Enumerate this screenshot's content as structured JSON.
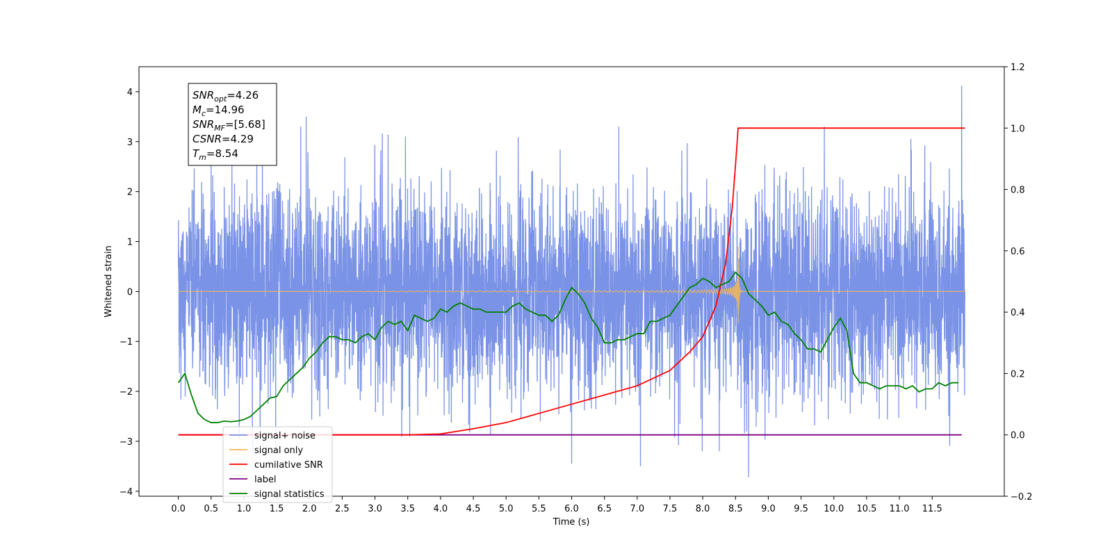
{
  "chart_data": {
    "type": "line",
    "xlabel": "Time (s)",
    "ylabel_left": "Whitened strain",
    "ylabel_right": "",
    "xlim": [
      -0.6,
      12.6
    ],
    "ylim_left": [
      -4.1,
      4.5
    ],
    "ylim_right": [
      -0.2,
      1.2
    ],
    "x_ticks": [
      "0.0",
      "0.5",
      "1.0",
      "1.5",
      "2.0",
      "2.5",
      "3.0",
      "3.5",
      "4.0",
      "4.5",
      "5.0",
      "5.5",
      "6.0",
      "6.5",
      "7.0",
      "7.5",
      "8.0",
      "8.5",
      "9.0",
      "9.5",
      "10.0",
      "10.5",
      "11.0",
      "11.5"
    ],
    "y_ticks_left": [
      "4",
      "3",
      "2",
      "1",
      "0",
      "−1",
      "−2",
      "−3",
      "−4"
    ],
    "y_ticks_right": [
      "1.2",
      "1.0",
      "0.8",
      "0.6",
      "0.4",
      "0.2",
      "0.0",
      "−0.2"
    ],
    "grid": false,
    "legend_position": "lower-left",
    "info_box": {
      "lines": [
        {
          "base": "SNR",
          "sub": "opt",
          "value": "=4.26"
        },
        {
          "base": "M",
          "sub": "c",
          "value": "=14.96"
        },
        {
          "base": "SNR",
          "sub": "MF",
          "value": "=[5.68]"
        },
        {
          "base": "CSNR",
          "sub": "",
          "value": "=4.29"
        },
        {
          "base": "T",
          "sub": "m",
          "value": "=8.54"
        }
      ]
    },
    "series": [
      {
        "name": "signal+ noise",
        "color": "#7b93e6",
        "axis": "left",
        "style": "noise",
        "x_range": [
          0.0,
          12.0
        ],
        "amplitude_std": 1.0,
        "notable_peaks": [
          {
            "x": 11.95,
            "y": 4.12
          },
          {
            "x": 1.95,
            "y": 3.5
          },
          {
            "x": 8.7,
            "y": -3.72
          },
          {
            "x": 7.05,
            "y": -3.5
          },
          {
            "x": 6.0,
            "y": -3.45
          }
        ]
      },
      {
        "name": "signal only",
        "color": "#f7b955",
        "axis": "left",
        "style": "chirp",
        "merger_time": 8.54,
        "x_range": [
          0.0,
          12.0
        ]
      },
      {
        "name": "cumilative SNR",
        "color": "#ff0000",
        "axis": "right",
        "x": [
          0.0,
          1.0,
          2.0,
          3.0,
          3.5,
          4.0,
          4.5,
          5.0,
          5.5,
          6.0,
          6.5,
          7.0,
          7.5,
          7.8,
          8.0,
          8.2,
          8.35,
          8.45,
          8.5,
          8.54,
          12.0
        ],
        "y": [
          0.0,
          0.0,
          0.0,
          0.0,
          0.0,
          0.003,
          0.02,
          0.04,
          0.07,
          0.1,
          0.13,
          0.16,
          0.21,
          0.27,
          0.32,
          0.42,
          0.56,
          0.74,
          0.88,
          1.0,
          1.0
        ]
      },
      {
        "name": "label",
        "color": "#800080",
        "axis": "right",
        "x": [
          0.0,
          11.95
        ],
        "y": [
          0.0,
          0.0
        ]
      },
      {
        "name": "signal statistics",
        "color": "#008000",
        "axis": "right",
        "x": [
          0.0,
          0.1,
          0.2,
          0.3,
          0.4,
          0.5,
          0.6,
          0.7,
          0.8,
          0.9,
          1.0,
          1.1,
          1.2,
          1.3,
          1.4,
          1.5,
          1.6,
          1.7,
          1.8,
          1.9,
          2.0,
          2.1,
          2.2,
          2.3,
          2.4,
          2.5,
          2.6,
          2.7,
          2.8,
          2.9,
          3.0,
          3.1,
          3.2,
          3.3,
          3.4,
          3.5,
          3.6,
          3.7,
          3.8,
          3.9,
          4.0,
          4.1,
          4.2,
          4.3,
          4.4,
          4.5,
          4.6,
          4.7,
          4.8,
          4.9,
          5.0,
          5.1,
          5.2,
          5.3,
          5.4,
          5.5,
          5.6,
          5.7,
          5.8,
          5.9,
          6.0,
          6.1,
          6.2,
          6.3,
          6.4,
          6.5,
          6.6,
          6.7,
          6.8,
          6.9,
          7.0,
          7.1,
          7.2,
          7.3,
          7.4,
          7.5,
          7.6,
          7.7,
          7.8,
          7.9,
          8.0,
          8.1,
          8.2,
          8.3,
          8.4,
          8.5,
          8.6,
          8.7,
          8.8,
          8.9,
          9.0,
          9.1,
          9.2,
          9.3,
          9.4,
          9.5,
          9.6,
          9.7,
          9.8,
          9.9,
          10.0,
          10.1,
          10.2,
          10.3,
          10.4,
          10.5,
          10.6,
          10.7,
          10.8,
          10.9,
          11.0,
          11.1,
          11.2,
          11.3,
          11.4,
          11.5,
          11.6,
          11.7,
          11.8,
          11.9
        ],
        "y": [
          0.17,
          0.2,
          0.13,
          0.07,
          0.05,
          0.04,
          0.04,
          0.045,
          0.043,
          0.045,
          0.05,
          0.06,
          0.08,
          0.1,
          0.12,
          0.125,
          0.16,
          0.18,
          0.2,
          0.22,
          0.25,
          0.27,
          0.3,
          0.32,
          0.32,
          0.31,
          0.31,
          0.3,
          0.32,
          0.33,
          0.31,
          0.35,
          0.37,
          0.36,
          0.37,
          0.34,
          0.39,
          0.38,
          0.37,
          0.38,
          0.41,
          0.4,
          0.42,
          0.43,
          0.42,
          0.41,
          0.41,
          0.4,
          0.4,
          0.4,
          0.4,
          0.42,
          0.43,
          0.41,
          0.4,
          0.39,
          0.39,
          0.37,
          0.39,
          0.44,
          0.48,
          0.46,
          0.43,
          0.38,
          0.35,
          0.3,
          0.3,
          0.31,
          0.31,
          0.32,
          0.33,
          0.33,
          0.37,
          0.37,
          0.38,
          0.39,
          0.42,
          0.45,
          0.48,
          0.49,
          0.51,
          0.5,
          0.48,
          0.49,
          0.5,
          0.53,
          0.51,
          0.46,
          0.44,
          0.42,
          0.39,
          0.4,
          0.37,
          0.36,
          0.33,
          0.31,
          0.28,
          0.28,
          0.27,
          0.31,
          0.35,
          0.38,
          0.34,
          0.2,
          0.17,
          0.17,
          0.16,
          0.15,
          0.16,
          0.16,
          0.16,
          0.15,
          0.16,
          0.14,
          0.15,
          0.15,
          0.17,
          0.16,
          0.17,
          0.17
        ]
      }
    ]
  }
}
